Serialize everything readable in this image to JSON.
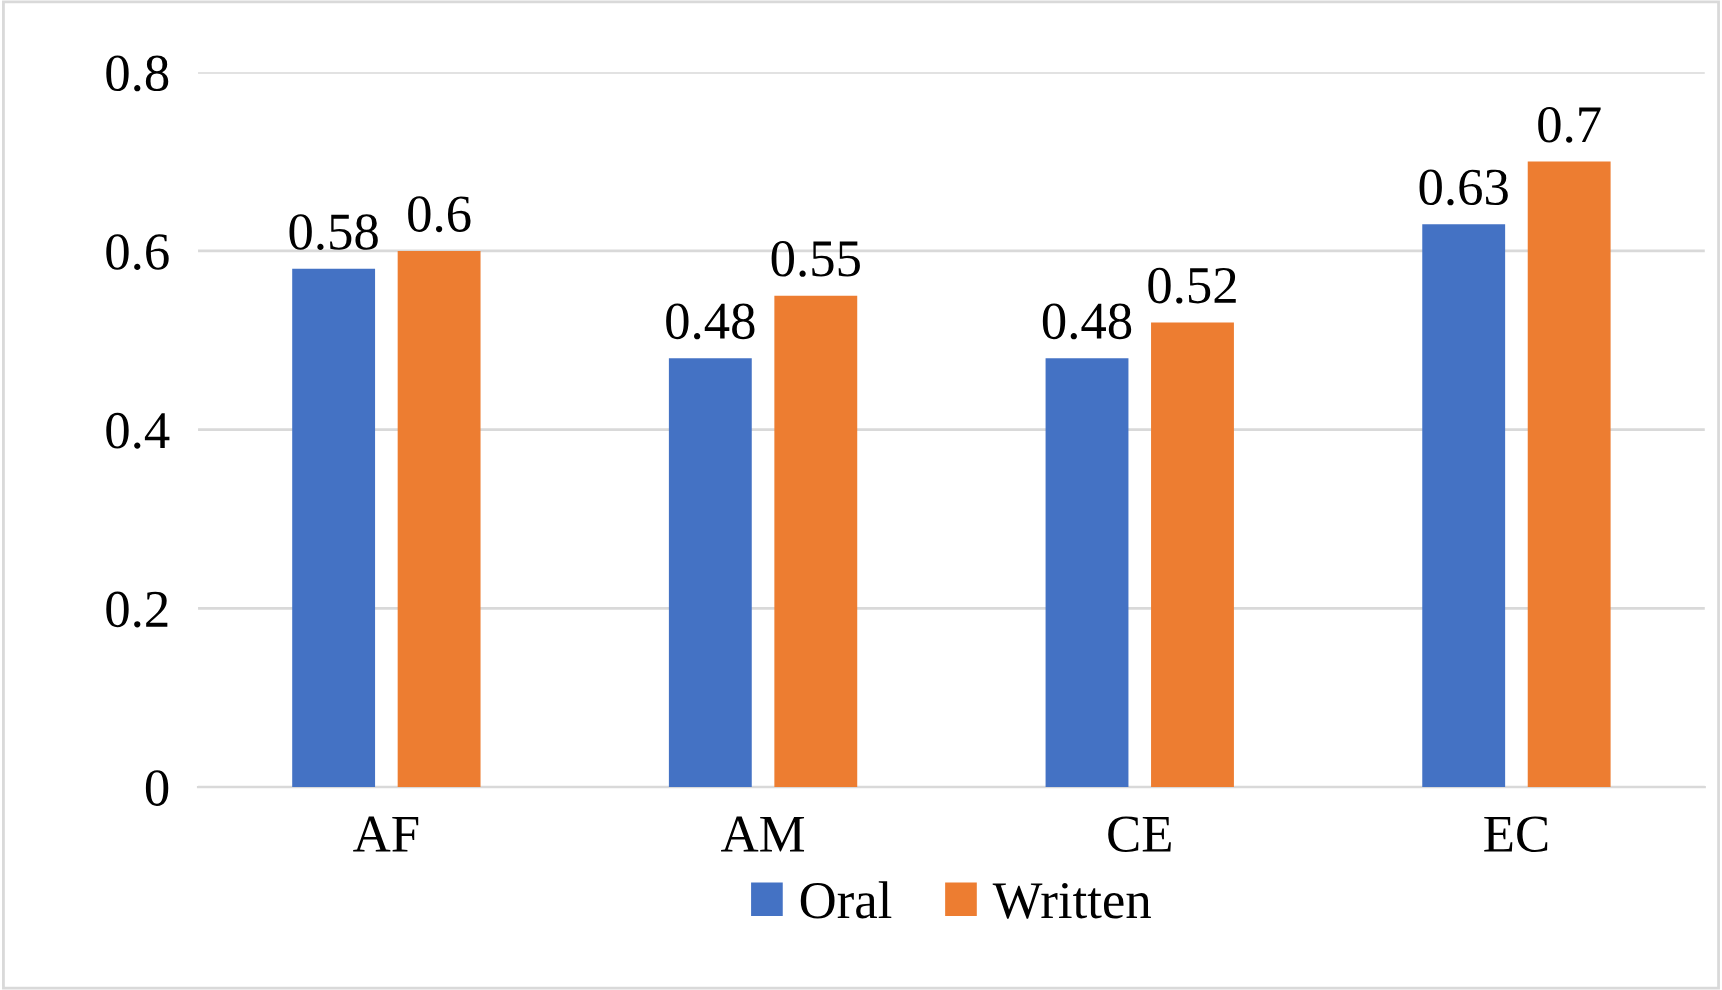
{
  "chart_data": {
    "type": "bar",
    "categories": [
      "AF",
      "AM",
      "CE",
      "EC"
    ],
    "series": [
      {
        "name": "Oral",
        "color": "#4472c4",
        "values": [
          0.58,
          0.48,
          0.48,
          0.63
        ]
      },
      {
        "name": "Written",
        "color": "#ed7d31",
        "values": [
          0.6,
          0.55,
          0.52,
          0.7
        ]
      }
    ],
    "ylim": [
      0,
      0.8
    ],
    "yticks": [
      0,
      0.2,
      0.4,
      0.6,
      0.8
    ],
    "grid": "y",
    "legend": "bottom",
    "data_labels": true
  }
}
